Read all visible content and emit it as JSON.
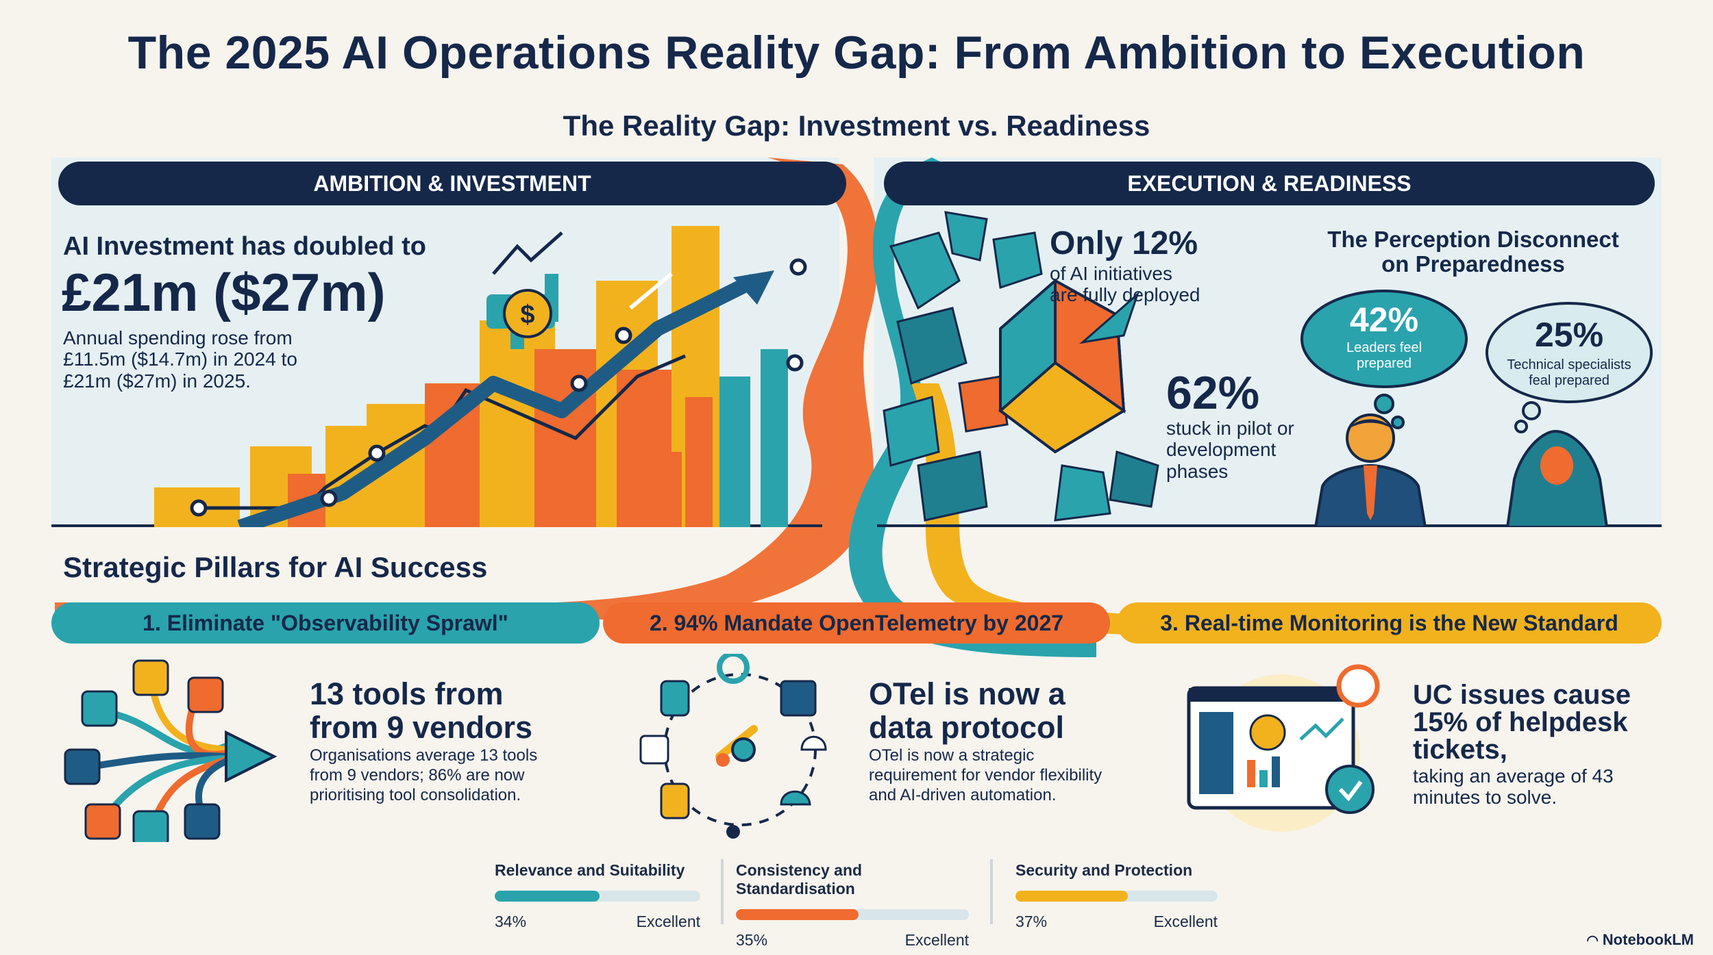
{
  "title": "The 2025 AI Operations Reality Gap: From Ambition to Execution",
  "subtitle": "The Reality Gap: Investment vs. Readiness",
  "left_panel": {
    "banner": "AMBITION & INVESTMENT",
    "headline_small": "AI Investment has doubled to",
    "headline_big": "£21m ($27m)",
    "body": [
      "Annual spending rose from",
      "£11.5m ($14.7m) in 2024 to",
      "£21m ($27m) in 2025."
    ]
  },
  "right_panel": {
    "banner": "EXECUTION & READINESS",
    "stat1_value": "Only 12%",
    "stat1_text": [
      "of AI initiatives",
      "are fully deployed"
    ],
    "stat2_value": "62%",
    "stat2_text": [
      "stuck in pilot or",
      "development",
      "phases"
    ],
    "perception_title": [
      "The Perception Disconnect",
      "on Preparedness"
    ],
    "leaders_value": "42%",
    "leaders_text": [
      "Leaders feel",
      "prepared"
    ],
    "tech_value": "25%",
    "tech_text": [
      "Technical specialists",
      "feal prepared"
    ]
  },
  "pillars_heading": "Strategic Pillars for AI Success",
  "pillars": [
    {
      "label": "1. Eliminate \"Observability Sprawl\"",
      "headline": [
        "13 tools from",
        "from 9 vendors"
      ],
      "body": [
        "Organisations average 13 tools",
        "from 9 vendors; 86% are now",
        "prioritising tool consolidation."
      ]
    },
    {
      "label": "2. 94% Mandate OpenTelemetry by 2027",
      "headline": [
        "OTel is now a",
        "data protocol"
      ],
      "body": [
        "OTel is now a strategic",
        "requirement for vendor flexibility",
        "and AI-driven automation."
      ]
    },
    {
      "label": "3. Real-time Monitoring is the New Standard",
      "headline": [
        "UC issues cause",
        "15% of helpdesk",
        "tickets,"
      ],
      "body": [
        "taking an average of 43",
        "minutes to solve."
      ]
    }
  ],
  "metrics": [
    {
      "label": "Relevance and Suitability",
      "value_text": "34%",
      "value": 0.34,
      "rating": "Excellent",
      "color": "#2aa3ad"
    },
    {
      "label": "Consistency and Standardisation",
      "value_text": "35%",
      "value": 0.35,
      "rating": "Excellent",
      "color": "#ef6b2f"
    },
    {
      "label": "Security and Protection",
      "value_text": "37%",
      "value": 0.37,
      "rating": "Excellent",
      "color": "#f2b21e"
    }
  ],
  "brand": "NotebookLM",
  "colors": {
    "navy": "#15284a",
    "teal": "#2aa3ad",
    "orange": "#ef6b2f",
    "yellow": "#f2b21e"
  }
}
